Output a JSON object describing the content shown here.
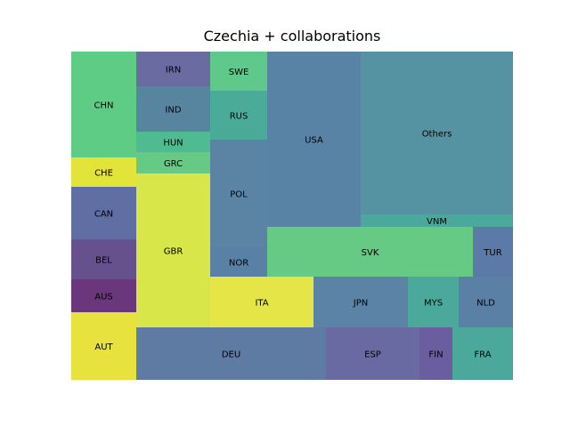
{
  "chart_data": {
    "type": "treemap",
    "title": "Czechia + collaborations",
    "cells": [
      {
        "label": "CHN",
        "value": 8.6,
        "color": "#5ecc84"
      },
      {
        "label": "CHE",
        "value": 2.4,
        "color": "#e3e43a"
      },
      {
        "label": "CAN",
        "value": 4.3,
        "color": "#5f6fa4"
      },
      {
        "label": "BEL",
        "value": 3.2,
        "color": "#67508e"
      },
      {
        "label": "AUS",
        "value": 2.7,
        "color": "#6a367c"
      },
      {
        "label": "AUT",
        "value": 5.5,
        "color": "#e8e23f"
      },
      {
        "label": "IRN",
        "value": 2.3,
        "color": "#6a6ba0"
      },
      {
        "label": "IND",
        "value": 3.1,
        "color": "#5785a0"
      },
      {
        "label": "HUN",
        "value": 1.4,
        "color": "#4fbb93"
      },
      {
        "label": "GRC",
        "value": 1.4,
        "color": "#67ca84"
      },
      {
        "label": "GBR",
        "value": 10.0,
        "color": "#d8e64a"
      },
      {
        "label": "SWE",
        "value": 2.5,
        "color": "#5ec98b"
      },
      {
        "label": "RUS",
        "value": 3.3,
        "color": "#4aab99"
      },
      {
        "label": "POL",
        "value": 6.2,
        "color": "#5b84a4"
      },
      {
        "label": "NOR",
        "value": 3.3,
        "color": "#5981a5"
      },
      {
        "label": "USA",
        "value": 12.1,
        "color": "#5883a5"
      },
      {
        "label": "Others",
        "value": 20.4,
        "color": "#5593a2"
      },
      {
        "label": "VNM",
        "value": 1.3,
        "color": "#4aa99b"
      },
      {
        "label": "SVK",
        "value": 9.0,
        "color": "#67ca84"
      },
      {
        "label": "TUR",
        "value": 2.6,
        "color": "#5c7aa7"
      },
      {
        "label": "ITA",
        "value": 6.7,
        "color": "#e6e547"
      },
      {
        "label": "JPN",
        "value": 6.1,
        "color": "#5b83a5"
      },
      {
        "label": "MYS",
        "value": 3.3,
        "color": "#4aa99b"
      },
      {
        "label": "NLD",
        "value": 3.5,
        "color": "#5b80a5"
      },
      {
        "label": "DEU",
        "value": 12.5,
        "color": "#5e7ba3"
      },
      {
        "label": "ESP",
        "value": 6.1,
        "color": "#6a6aa3"
      },
      {
        "label": "FIN",
        "value": 2.1,
        "color": "#6a5ea0"
      },
      {
        "label": "FRA",
        "value": 3.9,
        "color": "#4aa99b"
      }
    ]
  }
}
